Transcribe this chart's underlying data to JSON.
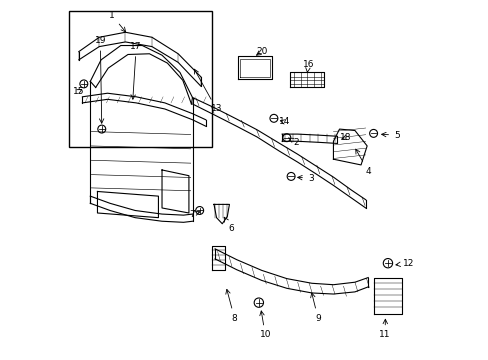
{
  "bg_color": "#ffffff",
  "line_color": "#000000",
  "parts_labels": [
    [
      1,
      0.13,
      0.96,
      0.175,
      0.905
    ],
    [
      2,
      0.645,
      0.605,
      0.622,
      0.618
    ],
    [
      3,
      0.685,
      0.505,
      0.638,
      0.508
    ],
    [
      4,
      0.845,
      0.525,
      0.805,
      0.595
    ],
    [
      5,
      0.925,
      0.625,
      0.872,
      0.628
    ],
    [
      6,
      0.462,
      0.365,
      0.438,
      0.405
    ],
    [
      7,
      0.355,
      0.405,
      0.378,
      0.412
    ],
    [
      8,
      0.472,
      0.115,
      0.448,
      0.205
    ],
    [
      9,
      0.705,
      0.115,
      0.685,
      0.195
    ],
    [
      10,
      0.558,
      0.068,
      0.545,
      0.145
    ],
    [
      11,
      0.892,
      0.068,
      0.893,
      0.122
    ],
    [
      12,
      0.958,
      0.268,
      0.912,
      0.262
    ],
    [
      13,
      0.422,
      0.698,
      0.355,
      0.818
    ],
    [
      14,
      0.612,
      0.662,
      0.59,
      0.668
    ],
    [
      15,
      0.038,
      0.748,
      0.055,
      0.758
    ],
    [
      16,
      0.678,
      0.822,
      0.675,
      0.798
    ],
    [
      17,
      0.198,
      0.872,
      0.188,
      0.715
    ],
    [
      18,
      0.782,
      0.618,
      0.762,
      0.612
    ],
    [
      19,
      0.098,
      0.888,
      0.102,
      0.648
    ],
    [
      20,
      0.548,
      0.858,
      0.525,
      0.842
    ]
  ]
}
